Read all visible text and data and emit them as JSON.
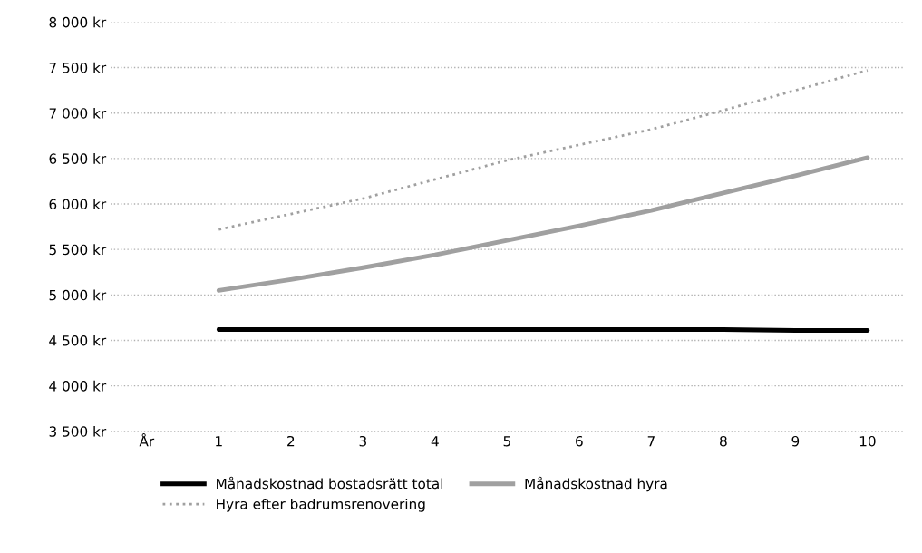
{
  "chart_data": {
    "type": "line",
    "categories": [
      "År",
      "1",
      "2",
      "3",
      "4",
      "5",
      "6",
      "7",
      "8",
      "9",
      "10"
    ],
    "series": [
      {
        "name": "Månadskostnad bostadsrätt total",
        "color": "#000000",
        "line_style": "solid",
        "values": [
          null,
          4620,
          4620,
          4620,
          4620,
          4620,
          4620,
          4620,
          4620,
          4610,
          4610
        ]
      },
      {
        "name": "Månadskostnad hyra",
        "color": "#a0a0a0",
        "line_style": "solid",
        "values": [
          null,
          5050,
          5170,
          5300,
          5440,
          5600,
          5760,
          5930,
          6120,
          6310,
          6510
        ]
      },
      {
        "name": "Hyra efter badrumsrenovering",
        "color": "#a0a0a0",
        "line_style": "dotted",
        "values": [
          null,
          5720,
          5890,
          6060,
          6270,
          6480,
          6650,
          6820,
          7030,
          7250,
          7470
        ]
      }
    ],
    "ylim": [
      3500,
      8000
    ],
    "yticks": [
      {
        "value": 3500,
        "label": "3 500 kr"
      },
      {
        "value": 4000,
        "label": "4 000 kr"
      },
      {
        "value": 4500,
        "label": "4 500 kr"
      },
      {
        "value": 5000,
        "label": "5 000 kr"
      },
      {
        "value": 5500,
        "label": "5 500 kr"
      },
      {
        "value": 6000,
        "label": "6 000 kr"
      },
      {
        "value": 6500,
        "label": "6 500 kr"
      },
      {
        "value": 7000,
        "label": "7 000 kr"
      },
      {
        "value": 7500,
        "label": "7 500 kr"
      },
      {
        "value": 8000,
        "label": "8 000 kr"
      }
    ],
    "grid": "y",
    "legend": "bottom"
  }
}
